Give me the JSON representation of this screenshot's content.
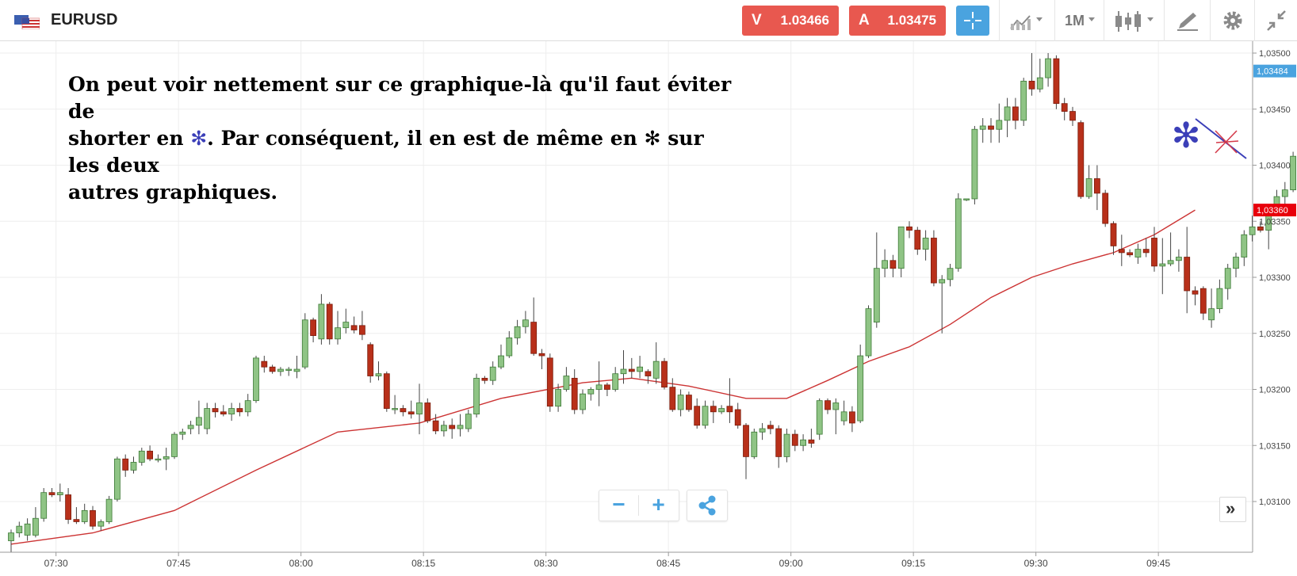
{
  "header": {
    "symbol": "EURUSD",
    "sell_label": "V",
    "sell_price": "1.03466",
    "buy_label": "A",
    "buy_price": "1.03475",
    "timeframe": "1M"
  },
  "annotation": {
    "line1": "On peut voir nettement sur ce graphique-là qu'il faut éviter de",
    "line2_before": "shorter en ",
    "line2_star": "✻",
    "line2_after": ". Par conséquent, il en est de même en ",
    "line2_star2": "✻",
    "line2_end": " sur les deux",
    "line3": "autres graphiques."
  },
  "controls": {
    "zoom_out": "−",
    "zoom_in": "+",
    "forward": "»"
  },
  "colors": {
    "bull": "#8fc485",
    "bull_border": "#3d7a36",
    "bear": "#b8301a",
    "bear_border": "#7a1c0c",
    "ma_line": "#cc3333",
    "current_price_tag": "#e8000b",
    "last_price_tag": "#4aa3df",
    "sell_button": "#e8584f",
    "buy_button": "#e8584f",
    "crosshair_button": "#4aa3df",
    "annotation_star": "#3b3fb8",
    "annotation_cross": "#d43a4a"
  },
  "chart_data": {
    "type": "candlestick",
    "symbol": "EURUSD",
    "timeframe": "1M",
    "ylim": [
      1.03055,
      1.03515
    ],
    "y_ticks": [
      "1,03500",
      "1,03450",
      "1,03400",
      "1,03350",
      "1,03300",
      "1,03250",
      "1,03200",
      "1,03150",
      "1,03100"
    ],
    "y_tick_values": [
      1.035,
      1.0345,
      1.034,
      1.0335,
      1.033,
      1.0325,
      1.032,
      1.0315,
      1.031
    ],
    "x_ticks": [
      "07:30",
      "07:45",
      "08:00",
      "08:15",
      "08:30",
      "08:45",
      "09:00",
      "09:15",
      "09:30",
      "09:45"
    ],
    "x_tick_index": [
      5.5,
      20.5,
      35.5,
      50.5,
      65.5,
      80.5,
      95.5,
      110.5,
      125.5,
      140.5
    ],
    "price_tags": [
      {
        "label": "1,03484",
        "value": 1.03484,
        "color": "#4aa3df"
      },
      {
        "label": "1,03360",
        "value": 1.0336,
        "color": "#e8000b"
      }
    ],
    "moving_average": [
      {
        "i": 0,
        "v": 1.03062
      },
      {
        "i": 10,
        "v": 1.03072
      },
      {
        "i": 20,
        "v": 1.03092
      },
      {
        "i": 30,
        "v": 1.03128
      },
      {
        "i": 40,
        "v": 1.03162
      },
      {
        "i": 50,
        "v": 1.0317
      },
      {
        "i": 60,
        "v": 1.03192
      },
      {
        "i": 70,
        "v": 1.03206
      },
      {
        "i": 76,
        "v": 1.0321
      },
      {
        "i": 83,
        "v": 1.03203
      },
      {
        "i": 90,
        "v": 1.03192
      },
      {
        "i": 95,
        "v": 1.03192
      },
      {
        "i": 100,
        "v": 1.03208
      },
      {
        "i": 105,
        "v": 1.03225
      },
      {
        "i": 110,
        "v": 1.03238
      },
      {
        "i": 115,
        "v": 1.03258
      },
      {
        "i": 120,
        "v": 1.03282
      },
      {
        "i": 125,
        "v": 1.033
      },
      {
        "i": 130,
        "v": 1.03312
      },
      {
        "i": 135,
        "v": 1.03322
      },
      {
        "i": 140,
        "v": 1.03338
      },
      {
        "i": 145,
        "v": 1.0336
      }
    ],
    "candles": [
      {
        "o": 1.03065,
        "h": 1.03075,
        "l": 1.03055,
        "c": 1.03072
      },
      {
        "o": 1.03072,
        "h": 1.03082,
        "l": 1.03068,
        "c": 1.03078
      },
      {
        "o": 1.0307,
        "h": 1.03085,
        "l": 1.03065,
        "c": 1.0308
      },
      {
        "o": 1.0307,
        "h": 1.03095,
        "l": 1.03068,
        "c": 1.03085
      },
      {
        "o": 1.03085,
        "h": 1.03112,
        "l": 1.03082,
        "c": 1.03108
      },
      {
        "o": 1.03108,
        "h": 1.03112,
        "l": 1.03104,
        "c": 1.03106
      },
      {
        "o": 1.03106,
        "h": 1.03116,
        "l": 1.031,
        "c": 1.03108
      },
      {
        "o": 1.03106,
        "h": 1.03112,
        "l": 1.0308,
        "c": 1.03084
      },
      {
        "o": 1.03084,
        "h": 1.03095,
        "l": 1.0308,
        "c": 1.03082
      },
      {
        "o": 1.03082,
        "h": 1.03098,
        "l": 1.0308,
        "c": 1.03092
      },
      {
        "o": 1.03092,
        "h": 1.03096,
        "l": 1.03075,
        "c": 1.03078
      },
      {
        "o": 1.03078,
        "h": 1.03084,
        "l": 1.03074,
        "c": 1.03082
      },
      {
        "o": 1.03082,
        "h": 1.03105,
        "l": 1.0308,
        "c": 1.03102
      },
      {
        "o": 1.03102,
        "h": 1.0314,
        "l": 1.031,
        "c": 1.03138
      },
      {
        "o": 1.03138,
        "h": 1.03142,
        "l": 1.03122,
        "c": 1.03128
      },
      {
        "o": 1.03128,
        "h": 1.0314,
        "l": 1.03125,
        "c": 1.03135
      },
      {
        "o": 1.03135,
        "h": 1.03148,
        "l": 1.03132,
        "c": 1.03145
      },
      {
        "o": 1.03145,
        "h": 1.0315,
        "l": 1.03136,
        "c": 1.03138
      },
      {
        "o": 1.03138,
        "h": 1.03142,
        "l": 1.03135,
        "c": 1.03138
      },
      {
        "o": 1.03138,
        "h": 1.03148,
        "l": 1.03128,
        "c": 1.0314
      },
      {
        "o": 1.0314,
        "h": 1.03162,
        "l": 1.03138,
        "c": 1.0316
      },
      {
        "o": 1.0316,
        "h": 1.03165,
        "l": 1.03155,
        "c": 1.03162
      },
      {
        "o": 1.03165,
        "h": 1.03172,
        "l": 1.0316,
        "c": 1.03168
      },
      {
        "o": 1.03168,
        "h": 1.0319,
        "l": 1.0316,
        "c": 1.03175
      },
      {
        "o": 1.03165,
        "h": 1.03188,
        "l": 1.0316,
        "c": 1.03183
      },
      {
        "o": 1.03183,
        "h": 1.03188,
        "l": 1.03175,
        "c": 1.0318
      },
      {
        "o": 1.0318,
        "h": 1.03186,
        "l": 1.03176,
        "c": 1.03178
      },
      {
        "o": 1.03178,
        "h": 1.03188,
        "l": 1.03172,
        "c": 1.03183
      },
      {
        "o": 1.03183,
        "h": 1.03188,
        "l": 1.03176,
        "c": 1.0318
      },
      {
        "o": 1.0318,
        "h": 1.03196,
        "l": 1.03176,
        "c": 1.0319
      },
      {
        "o": 1.0319,
        "h": 1.0323,
        "l": 1.03188,
        "c": 1.03228
      },
      {
        "o": 1.03225,
        "h": 1.0323,
        "l": 1.03215,
        "c": 1.0322
      },
      {
        "o": 1.0322,
        "h": 1.03222,
        "l": 1.03214,
        "c": 1.03216
      },
      {
        "o": 1.03216,
        "h": 1.0322,
        "l": 1.03212,
        "c": 1.03218
      },
      {
        "o": 1.03218,
        "h": 1.0322,
        "l": 1.03212,
        "c": 1.03218
      },
      {
        "o": 1.03216,
        "h": 1.0323,
        "l": 1.0321,
        "c": 1.03218
      },
      {
        "o": 1.0322,
        "h": 1.03268,
        "l": 1.03218,
        "c": 1.03262
      },
      {
        "o": 1.03262,
        "h": 1.03264,
        "l": 1.03242,
        "c": 1.03248
      },
      {
        "o": 1.03245,
        "h": 1.03285,
        "l": 1.0324,
        "c": 1.03276
      },
      {
        "o": 1.03276,
        "h": 1.03278,
        "l": 1.0324,
        "c": 1.03245
      },
      {
        "o": 1.03245,
        "h": 1.0327,
        "l": 1.0324,
        "c": 1.03255
      },
      {
        "o": 1.03255,
        "h": 1.03272,
        "l": 1.0325,
        "c": 1.0326
      },
      {
        "o": 1.03257,
        "h": 1.03265,
        "l": 1.0325,
        "c": 1.03253
      },
      {
        "o": 1.03257,
        "h": 1.0327,
        "l": 1.03244,
        "c": 1.03249
      },
      {
        "o": 1.0324,
        "h": 1.03242,
        "l": 1.03206,
        "c": 1.03212
      },
      {
        "o": 1.03212,
        "h": 1.03225,
        "l": 1.03208,
        "c": 1.03214
      },
      {
        "o": 1.03214,
        "h": 1.03216,
        "l": 1.0318,
        "c": 1.03183
      },
      {
        "o": 1.03183,
        "h": 1.03195,
        "l": 1.03178,
        "c": 1.03183
      },
      {
        "o": 1.03183,
        "h": 1.03186,
        "l": 1.03176,
        "c": 1.0318
      },
      {
        "o": 1.0318,
        "h": 1.0319,
        "l": 1.03174,
        "c": 1.03178
      },
      {
        "o": 1.03178,
        "h": 1.03205,
        "l": 1.0316,
        "c": 1.03188
      },
      {
        "o": 1.03188,
        "h": 1.03192,
        "l": 1.0317,
        "c": 1.03172
      },
      {
        "o": 1.03172,
        "h": 1.03178,
        "l": 1.0316,
        "c": 1.03163
      },
      {
        "o": 1.03163,
        "h": 1.03172,
        "l": 1.03158,
        "c": 1.03168
      },
      {
        "o": 1.03168,
        "h": 1.03174,
        "l": 1.03156,
        "c": 1.03165
      },
      {
        "o": 1.03165,
        "h": 1.03178,
        "l": 1.03158,
        "c": 1.03168
      },
      {
        "o": 1.03165,
        "h": 1.03182,
        "l": 1.03162,
        "c": 1.03178
      },
      {
        "o": 1.03178,
        "h": 1.03214,
        "l": 1.03175,
        "c": 1.0321
      },
      {
        "o": 1.0321,
        "h": 1.03212,
        "l": 1.03205,
        "c": 1.03208
      },
      {
        "o": 1.03208,
        "h": 1.03225,
        "l": 1.03204,
        "c": 1.0322
      },
      {
        "o": 1.0322,
        "h": 1.0324,
        "l": 1.03218,
        "c": 1.0323
      },
      {
        "o": 1.0323,
        "h": 1.03252,
        "l": 1.03228,
        "c": 1.03246
      },
      {
        "o": 1.03246,
        "h": 1.03262,
        "l": 1.0324,
        "c": 1.03256
      },
      {
        "o": 1.03256,
        "h": 1.0327,
        "l": 1.0325,
        "c": 1.03262
      },
      {
        "o": 1.0326,
        "h": 1.03282,
        "l": 1.0323,
        "c": 1.03232
      },
      {
        "o": 1.03232,
        "h": 1.03236,
        "l": 1.03218,
        "c": 1.0323
      },
      {
        "o": 1.03228,
        "h": 1.03232,
        "l": 1.0318,
        "c": 1.03185
      },
      {
        "o": 1.03185,
        "h": 1.03205,
        "l": 1.0318,
        "c": 1.032
      },
      {
        "o": 1.032,
        "h": 1.0322,
        "l": 1.03198,
        "c": 1.03212
      },
      {
        "o": 1.0321,
        "h": 1.03218,
        "l": 1.03178,
        "c": 1.03182
      },
      {
        "o": 1.03182,
        "h": 1.032,
        "l": 1.03178,
        "c": 1.03196
      },
      {
        "o": 1.03196,
        "h": 1.03202,
        "l": 1.0319,
        "c": 1.032
      },
      {
        "o": 1.032,
        "h": 1.03225,
        "l": 1.03185,
        "c": 1.03204
      },
      {
        "o": 1.03204,
        "h": 1.03206,
        "l": 1.03194,
        "c": 1.032
      },
      {
        "o": 1.032,
        "h": 1.0322,
        "l": 1.03198,
        "c": 1.03214
      },
      {
        "o": 1.03214,
        "h": 1.03235,
        "l": 1.03205,
        "c": 1.03218
      },
      {
        "o": 1.03218,
        "h": 1.03228,
        "l": 1.0321,
        "c": 1.03216
      },
      {
        "o": 1.03216,
        "h": 1.0323,
        "l": 1.0321,
        "c": 1.0322
      },
      {
        "o": 1.03216,
        "h": 1.03218,
        "l": 1.03205,
        "c": 1.03212
      },
      {
        "o": 1.0321,
        "h": 1.03242,
        "l": 1.03205,
        "c": 1.03225
      },
      {
        "o": 1.03225,
        "h": 1.03228,
        "l": 1.032,
        "c": 1.03202
      },
      {
        "o": 1.03202,
        "h": 1.0321,
        "l": 1.0318,
        "c": 1.03182
      },
      {
        "o": 1.03182,
        "h": 1.032,
        "l": 1.03176,
        "c": 1.03195
      },
      {
        "o": 1.03195,
        "h": 1.03198,
        "l": 1.0318,
        "c": 1.03182
      },
      {
        "o": 1.03185,
        "h": 1.03192,
        "l": 1.03165,
        "c": 1.03168
      },
      {
        "o": 1.03168,
        "h": 1.0319,
        "l": 1.03165,
        "c": 1.03185
      },
      {
        "o": 1.03185,
        "h": 1.0319,
        "l": 1.0317,
        "c": 1.0318
      },
      {
        "o": 1.0318,
        "h": 1.03186,
        "l": 1.03178,
        "c": 1.03183
      },
      {
        "o": 1.03185,
        "h": 1.0321,
        "l": 1.0317,
        "c": 1.0318
      },
      {
        "o": 1.03182,
        "h": 1.03188,
        "l": 1.03165,
        "c": 1.03168
      },
      {
        "o": 1.03168,
        "h": 1.0317,
        "l": 1.0312,
        "c": 1.0314
      },
      {
        "o": 1.0314,
        "h": 1.03165,
        "l": 1.03138,
        "c": 1.03162
      },
      {
        "o": 1.03162,
        "h": 1.0317,
        "l": 1.03155,
        "c": 1.03165
      },
      {
        "o": 1.03168,
        "h": 1.03172,
        "l": 1.0316,
        "c": 1.03165
      },
      {
        "o": 1.03165,
        "h": 1.03168,
        "l": 1.0313,
        "c": 1.0314
      },
      {
        "o": 1.0314,
        "h": 1.03165,
        "l": 1.03135,
        "c": 1.0316
      },
      {
        "o": 1.0316,
        "h": 1.03164,
        "l": 1.03145,
        "c": 1.0315
      },
      {
        "o": 1.0315,
        "h": 1.0316,
        "l": 1.03145,
        "c": 1.03155
      },
      {
        "o": 1.03155,
        "h": 1.03165,
        "l": 1.03148,
        "c": 1.03152
      },
      {
        "o": 1.0316,
        "h": 1.03192,
        "l": 1.03155,
        "c": 1.0319
      },
      {
        "o": 1.0319,
        "h": 1.03192,
        "l": 1.03178,
        "c": 1.03182
      },
      {
        "o": 1.03182,
        "h": 1.03192,
        "l": 1.0316,
        "c": 1.03188
      },
      {
        "o": 1.03172,
        "h": 1.0319,
        "l": 1.03168,
        "c": 1.0318
      },
      {
        "o": 1.0318,
        "h": 1.03185,
        "l": 1.03162,
        "c": 1.0317
      },
      {
        "o": 1.03172,
        "h": 1.0324,
        "l": 1.0317,
        "c": 1.0323
      },
      {
        "o": 1.0323,
        "h": 1.03275,
        "l": 1.03228,
        "c": 1.03272
      },
      {
        "o": 1.0326,
        "h": 1.0334,
        "l": 1.03255,
        "c": 1.03308
      },
      {
        "o": 1.03308,
        "h": 1.03325,
        "l": 1.033,
        "c": 1.03315
      },
      {
        "o": 1.03315,
        "h": 1.0332,
        "l": 1.033,
        "c": 1.03308
      },
      {
        "o": 1.03308,
        "h": 1.03345,
        "l": 1.033,
        "c": 1.03345
      },
      {
        "o": 1.03345,
        "h": 1.0335,
        "l": 1.03335,
        "c": 1.03342
      },
      {
        "o": 1.03342,
        "h": 1.03345,
        "l": 1.0332,
        "c": 1.03325
      },
      {
        "o": 1.03325,
        "h": 1.03342,
        "l": 1.03315,
        "c": 1.03335
      },
      {
        "o": 1.03335,
        "h": 1.03342,
        "l": 1.03292,
        "c": 1.03295
      },
      {
        "o": 1.03295,
        "h": 1.03302,
        "l": 1.0325,
        "c": 1.03298
      },
      {
        "o": 1.03298,
        "h": 1.03312,
        "l": 1.03292,
        "c": 1.03308
      },
      {
        "o": 1.03308,
        "h": 1.03375,
        "l": 1.03305,
        "c": 1.0337
      },
      {
        "o": 1.0337,
        "h": 1.0337,
        "l": 1.03368,
        "c": 1.0337
      },
      {
        "o": 1.0337,
        "h": 1.03435,
        "l": 1.03365,
        "c": 1.03432
      },
      {
        "o": 1.03432,
        "h": 1.03442,
        "l": 1.0342,
        "c": 1.03435
      },
      {
        "o": 1.03435,
        "h": 1.03442,
        "l": 1.0342,
        "c": 1.03432
      },
      {
        "o": 1.03432,
        "h": 1.03455,
        "l": 1.0342,
        "c": 1.0344
      },
      {
        "o": 1.0344,
        "h": 1.0346,
        "l": 1.03425,
        "c": 1.03452
      },
      {
        "o": 1.03452,
        "h": 1.0346,
        "l": 1.03432,
        "c": 1.0344
      },
      {
        "o": 1.0344,
        "h": 1.03478,
        "l": 1.03435,
        "c": 1.03475
      },
      {
        "o": 1.03475,
        "h": 1.035,
        "l": 1.03462,
        "c": 1.03468
      },
      {
        "o": 1.03468,
        "h": 1.03495,
        "l": 1.03465,
        "c": 1.03478
      },
      {
        "o": 1.03478,
        "h": 1.035,
        "l": 1.0347,
        "c": 1.03495
      },
      {
        "o": 1.03495,
        "h": 1.03498,
        "l": 1.0345,
        "c": 1.03455
      },
      {
        "o": 1.03455,
        "h": 1.0346,
        "l": 1.0344,
        "c": 1.03448
      },
      {
        "o": 1.03448,
        "h": 1.03452,
        "l": 1.03435,
        "c": 1.0344
      },
      {
        "o": 1.03438,
        "h": 1.0344,
        "l": 1.0337,
        "c": 1.03372
      },
      {
        "o": 1.03372,
        "h": 1.034,
        "l": 1.0337,
        "c": 1.03388
      },
      {
        "o": 1.03388,
        "h": 1.034,
        "l": 1.0336,
        "c": 1.03375
      },
      {
        "o": 1.03375,
        "h": 1.03378,
        "l": 1.03345,
        "c": 1.03348
      },
      {
        "o": 1.03348,
        "h": 1.0335,
        "l": 1.0332,
        "c": 1.03328
      },
      {
        "o": 1.03325,
        "h": 1.03338,
        "l": 1.0331,
        "c": 1.03322
      },
      {
        "o": 1.03322,
        "h": 1.03325,
        "l": 1.03318,
        "c": 1.0332
      },
      {
        "o": 1.03318,
        "h": 1.0333,
        "l": 1.03312,
        "c": 1.03325
      },
      {
        "o": 1.03325,
        "h": 1.03335,
        "l": 1.03318,
        "c": 1.03322
      },
      {
        "o": 1.03335,
        "h": 1.03345,
        "l": 1.03305,
        "c": 1.0331
      },
      {
        "o": 1.0331,
        "h": 1.03335,
        "l": 1.03285,
        "c": 1.03312
      },
      {
        "o": 1.03312,
        "h": 1.0334,
        "l": 1.0331,
        "c": 1.03315
      },
      {
        "o": 1.03315,
        "h": 1.03325,
        "l": 1.03305,
        "c": 1.03318
      },
      {
        "o": 1.03318,
        "h": 1.03345,
        "l": 1.03268,
        "c": 1.03288
      },
      {
        "o": 1.03288,
        "h": 1.03292,
        "l": 1.03275,
        "c": 1.03285
      },
      {
        "o": 1.0329,
        "h": 1.03292,
        "l": 1.03262,
        "c": 1.03268
      },
      {
        "o": 1.03262,
        "h": 1.0329,
        "l": 1.03255,
        "c": 1.03272
      },
      {
        "o": 1.03272,
        "h": 1.03298,
        "l": 1.03268,
        "c": 1.0329
      },
      {
        "o": 1.0329,
        "h": 1.03312,
        "l": 1.0328,
        "c": 1.03308
      },
      {
        "o": 1.03308,
        "h": 1.03322,
        "l": 1.033,
        "c": 1.03318
      },
      {
        "o": 1.03318,
        "h": 1.03342,
        "l": 1.0331,
        "c": 1.03338
      },
      {
        "o": 1.03338,
        "h": 1.03355,
        "l": 1.03332,
        "c": 1.03345
      },
      {
        "o": 1.03345,
        "h": 1.0335,
        "l": 1.0334,
        "c": 1.03342
      },
      {
        "o": 1.03342,
        "h": 1.0336,
        "l": 1.03325,
        "c": 1.03358
      },
      {
        "o": 1.03358,
        "h": 1.03378,
        "l": 1.03355,
        "c": 1.03372
      },
      {
        "o": 1.03372,
        "h": 1.03385,
        "l": 1.03365,
        "c": 1.03378
      },
      {
        "o": 1.03378,
        "h": 1.03412,
        "l": 1.03376,
        "c": 1.03408
      }
    ]
  }
}
